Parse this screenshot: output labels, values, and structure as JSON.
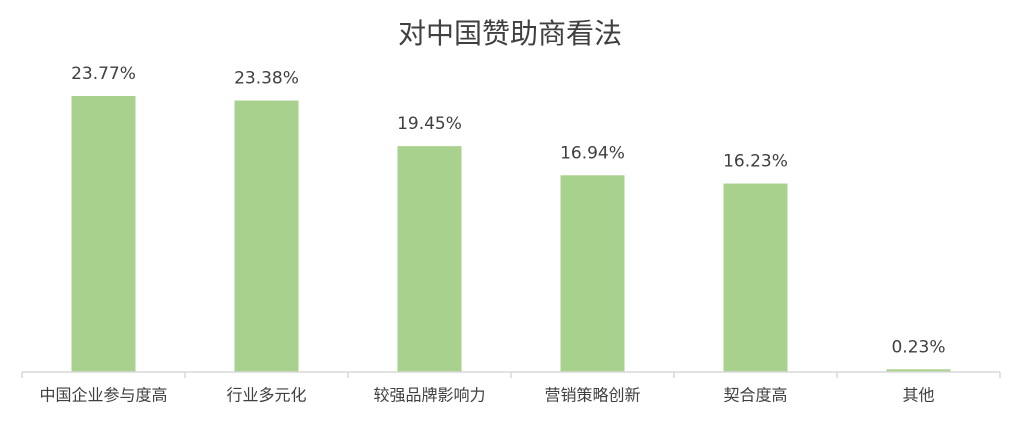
{
  "chart_data": {
    "type": "bar",
    "title": "对中国赞助商看法",
    "categories": [
      "中国企业参与度高",
      "行业多元化",
      "较强品牌影响力",
      "营销策略创新",
      "契合度高",
      "其他"
    ],
    "values": [
      23.77,
      23.38,
      19.45,
      16.94,
      16.23,
      0.23
    ],
    "value_labels": [
      "23.77%",
      "23.38%",
      "19.45%",
      "16.94%",
      "16.23%",
      "0.23%"
    ],
    "color": "#a9d18e"
  }
}
